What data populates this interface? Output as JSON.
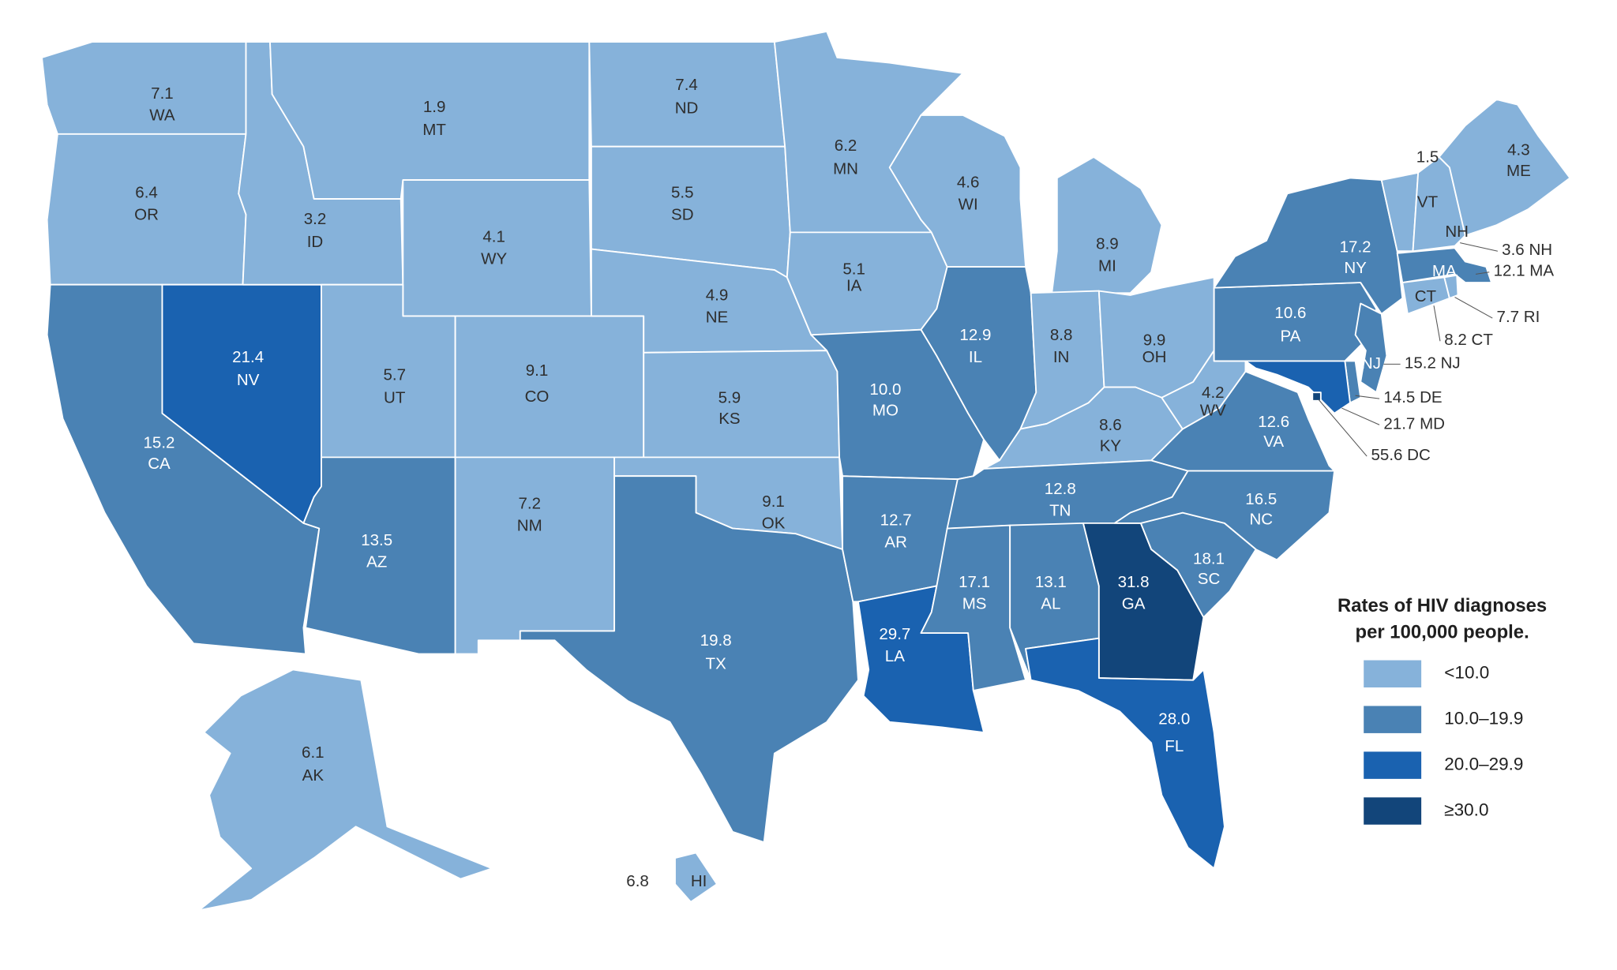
{
  "map": {
    "legend": {
      "title_lines": [
        "Rates of HIV diagnoses",
        "per 100,000 people."
      ],
      "items": [
        {
          "label": "<10.0",
          "color": "#86b2da"
        },
        {
          "label": "10.0–19.9",
          "color": "#4a82b4"
        },
        {
          "label": "20.0–29.9",
          "color": "#1a62b0"
        },
        {
          "label": "≥30.0",
          "color": "#12457a"
        }
      ]
    },
    "states": [
      {
        "abbr": "WA",
        "value": 7.1,
        "color": "#86b2da"
      },
      {
        "abbr": "OR",
        "value": 6.4,
        "color": "#86b2da"
      },
      {
        "abbr": "CA",
        "value": 15.2,
        "color": "#4a82b4"
      },
      {
        "abbr": "NV",
        "value": 21.4,
        "color": "#1a62b0"
      },
      {
        "abbr": "ID",
        "value": 3.2,
        "color": "#86b2da"
      },
      {
        "abbr": "MT",
        "value": 1.9,
        "color": "#86b2da"
      },
      {
        "abbr": "WY",
        "value": 4.1,
        "color": "#86b2da"
      },
      {
        "abbr": "UT",
        "value": 5.7,
        "color": "#86b2da"
      },
      {
        "abbr": "CO",
        "value": 9.1,
        "color": "#86b2da"
      },
      {
        "abbr": "AZ",
        "value": 13.5,
        "color": "#4a82b4"
      },
      {
        "abbr": "NM",
        "value": 7.2,
        "color": "#86b2da"
      },
      {
        "abbr": "ND",
        "value": 7.4,
        "color": "#86b2da"
      },
      {
        "abbr": "SD",
        "value": 5.5,
        "color": "#86b2da"
      },
      {
        "abbr": "NE",
        "value": 4.9,
        "color": "#86b2da"
      },
      {
        "abbr": "KS",
        "value": 5.9,
        "color": "#86b2da"
      },
      {
        "abbr": "OK",
        "value": 9.1,
        "color": "#86b2da"
      },
      {
        "abbr": "TX",
        "value": 19.8,
        "color": "#4a82b4"
      },
      {
        "abbr": "MN",
        "value": 6.2,
        "color": "#86b2da"
      },
      {
        "abbr": "IA",
        "value": 5.1,
        "color": "#86b2da"
      },
      {
        "abbr": "MO",
        "value": 10.0,
        "value_label": "10.0",
        "color": "#4a82b4"
      },
      {
        "abbr": "AR",
        "value": 12.7,
        "color": "#4a82b4"
      },
      {
        "abbr": "LA",
        "value": 29.7,
        "color": "#1a62b0"
      },
      {
        "abbr": "WI",
        "value": 4.6,
        "color": "#86b2da"
      },
      {
        "abbr": "IL",
        "value": 12.9,
        "color": "#4a82b4"
      },
      {
        "abbr": "MI",
        "value": 8.9,
        "color": "#86b2da"
      },
      {
        "abbr": "IN",
        "value": 8.8,
        "color": "#86b2da"
      },
      {
        "abbr": "OH",
        "value": 9.9,
        "color": "#86b2da"
      },
      {
        "abbr": "KY",
        "value": 8.6,
        "color": "#86b2da"
      },
      {
        "abbr": "TN",
        "value": 12.8,
        "color": "#4a82b4"
      },
      {
        "abbr": "MS",
        "value": 17.1,
        "color": "#4a82b4"
      },
      {
        "abbr": "AL",
        "value": 13.1,
        "color": "#4a82b4"
      },
      {
        "abbr": "GA",
        "value": 31.8,
        "color": "#12457a"
      },
      {
        "abbr": "FL",
        "value": 28.0,
        "value_label": "28.0",
        "color": "#1a62b0"
      },
      {
        "abbr": "SC",
        "value": 18.1,
        "color": "#4a82b4"
      },
      {
        "abbr": "NC",
        "value": 16.5,
        "color": "#4a82b4"
      },
      {
        "abbr": "VA",
        "value": 12.6,
        "color": "#4a82b4"
      },
      {
        "abbr": "WV",
        "value": 4.2,
        "color": "#86b2da"
      },
      {
        "abbr": "PA",
        "value": 10.6,
        "color": "#4a82b4"
      },
      {
        "abbr": "NY",
        "value": 17.2,
        "color": "#4a82b4"
      },
      {
        "abbr": "VT",
        "value": 1.5,
        "color": "#86b2da"
      },
      {
        "abbr": "NH",
        "value": 3.6,
        "color": "#86b2da"
      },
      {
        "abbr": "ME",
        "value": 4.3,
        "color": "#86b2da"
      },
      {
        "abbr": "MA",
        "value": 12.1,
        "color": "#4a82b4"
      },
      {
        "abbr": "CT",
        "value": 8.2,
        "color": "#86b2da"
      },
      {
        "abbr": "RI",
        "value": 7.7,
        "color": "#86b2da"
      },
      {
        "abbr": "NJ",
        "value": 15.2,
        "color": "#4a82b4"
      },
      {
        "abbr": "DE",
        "value": 14.5,
        "color": "#4a82b4"
      },
      {
        "abbr": "MD",
        "value": 21.7,
        "color": "#1a62b0"
      },
      {
        "abbr": "DC",
        "value": 55.6,
        "color": "#12457a"
      },
      {
        "abbr": "AK",
        "value": 6.1,
        "color": "#86b2da"
      },
      {
        "abbr": "HI",
        "value": 6.8,
        "color": "#86b2da"
      }
    ]
  }
}
